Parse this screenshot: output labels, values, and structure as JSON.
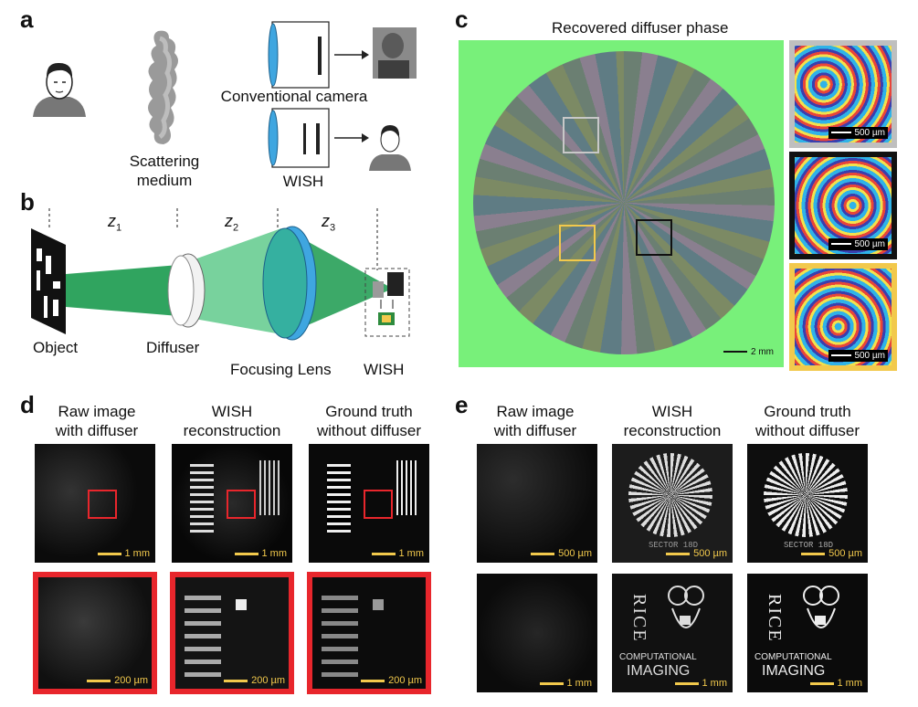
{
  "panels": {
    "a": {
      "label": "a",
      "scattering": "Scattering\nmedium",
      "conventional": "Conventional camera",
      "wish": "WISH"
    },
    "b": {
      "label": "b",
      "z1": "z",
      "z1_sub": "1",
      "z2": "z",
      "z2_sub": "2",
      "z3": "z",
      "z3_sub": "3",
      "object": "Object",
      "diffuser": "Diffuser",
      "lens": "Focusing Lens",
      "wish": "WISH"
    },
    "c": {
      "label": "c",
      "title": "Recovered diffuser phase",
      "scale_main": "2 mm",
      "insets": [
        {
          "border": "#bfbfbf",
          "scale": "500 µm"
        },
        {
          "border": "#111111",
          "scale": "500 µm"
        },
        {
          "border": "#f2c94c",
          "scale": "500 µm"
        }
      ]
    },
    "d": {
      "label": "d",
      "columns": [
        "Raw image\nwith diffuser",
        "WISH\nreconstruction",
        "Ground truth\nwithout diffuser"
      ],
      "row1_scale": "1 mm",
      "row2_scale": "200 µm"
    },
    "e": {
      "label": "e",
      "columns": [
        "Raw image\nwith diffuser",
        "WISH\nreconstruction",
        "Ground truth\nwithout diffuser"
      ],
      "row1_scale": "500 µm",
      "row2_scale": "1 mm",
      "sector_text": "SECTOR 18D",
      "rice": "RICE",
      "computational": "COMPUTATIONAL",
      "imaging": "IMAGING"
    }
  },
  "colors": {
    "green_bg": "#78f07a",
    "beam": "#1a9a4e",
    "lens_blue": "#3fa6e0",
    "yellow_scale": "#f2c94c",
    "red_box": "#e8262c"
  }
}
